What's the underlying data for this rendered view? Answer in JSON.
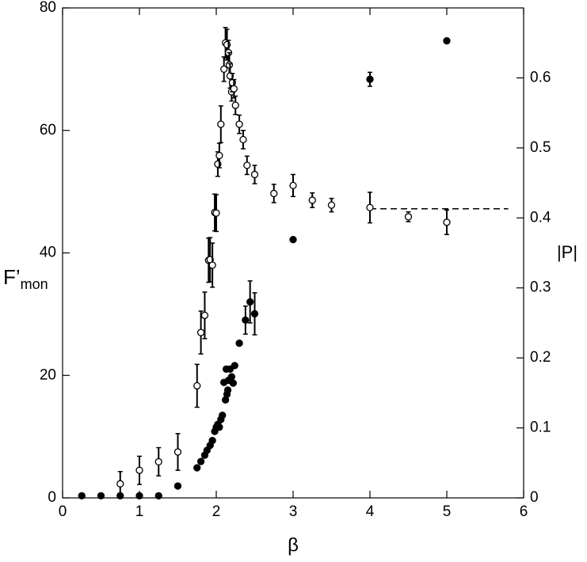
{
  "chart_data": {
    "type": "scatter",
    "x_label": "β",
    "y_label": "F’",
    "y_label_sub": "mon",
    "y2_label": "|P|",
    "xlim": [
      0,
      6
    ],
    "xticks": [
      0,
      1,
      2,
      3,
      4,
      5,
      6
    ],
    "ylim": [
      0,
      80
    ],
    "yticks": [
      0,
      20,
      40,
      60,
      80
    ],
    "y2lim": [
      0,
      0.7
    ],
    "y2ticks": [
      0,
      0.1,
      0.2,
      0.3,
      0.4,
      0.5,
      0.6
    ],
    "series": [
      {
        "marker": "open",
        "color": "#000000",
        "x": [
          0.75,
          1.0,
          1.25,
          1.5,
          1.75,
          1.8,
          1.85,
          1.9,
          1.92,
          1.95,
          1.98,
          2.0,
          2.02,
          2.04,
          2.06,
          2.1,
          2.12,
          2.14,
          2.16,
          2.17,
          2.18,
          2.2,
          2.21,
          2.23,
          2.25,
          2.3,
          2.35,
          2.4,
          2.5,
          2.75,
          3.0,
          3.25,
          3.5,
          4.0,
          4.5,
          5.0
        ],
        "values": [
          2.3,
          4.5,
          5.9,
          7.5,
          18.3,
          27.0,
          29.8,
          38.8,
          38.9,
          38.0,
          46.6,
          46.5,
          54.5,
          55.9,
          61.0,
          70.0,
          74.3,
          74.0,
          72.7,
          70.7,
          68.9,
          66.3,
          67.8,
          66.8,
          64.1,
          61.0,
          58.5,
          54.3,
          52.8,
          49.7,
          51.0,
          48.6,
          47.8,
          47.4,
          45.9,
          45.0
        ],
        "errors": [
          2.0,
          2.3,
          2.3,
          3.0,
          3.5,
          3.5,
          3.8,
          3.6,
          3.6,
          3.6,
          3.0,
          3.0,
          2.0,
          2.0,
          3.0,
          2.0,
          2.5,
          2.5,
          2.0,
          2.0,
          2.0,
          1.5,
          1.5,
          1.5,
          1.5,
          1.5,
          1.5,
          1.5,
          1.5,
          1.5,
          1.8,
          1.2,
          1.1,
          2.5,
          0.8,
          2.0
        ]
      },
      {
        "marker": "filled",
        "color": "#000000",
        "axis": "y2",
        "x": [
          0.25,
          0.5,
          0.75,
          1.0,
          1.25,
          1.5,
          1.75,
          1.8,
          1.85,
          1.88,
          1.92,
          1.95,
          1.98,
          2.0,
          2.02,
          2.04,
          2.06,
          2.08,
          2.1,
          2.12,
          2.13,
          2.14,
          2.15,
          2.16,
          2.18,
          2.2,
          2.22,
          2.24,
          2.3,
          2.38,
          2.44,
          2.5,
          3.0,
          4.0,
          5.0
        ],
        "values": [
          0.003,
          0.003,
          0.003,
          0.003,
          0.003,
          0.017,
          0.043,
          0.052,
          0.061,
          0.068,
          0.075,
          0.082,
          0.095,
          0.101,
          0.105,
          0.101,
          0.112,
          0.118,
          0.165,
          0.14,
          0.184,
          0.148,
          0.154,
          0.168,
          0.184,
          0.173,
          0.164,
          0.189,
          0.221,
          0.254,
          0.28,
          0.263,
          0.369,
          0.598,
          0.653
        ],
        "errors": [
          null,
          null,
          null,
          null,
          null,
          null,
          null,
          null,
          null,
          null,
          null,
          null,
          null,
          null,
          null,
          null,
          null,
          null,
          null,
          null,
          null,
          null,
          null,
          null,
          null,
          null,
          null,
          null,
          null,
          0.02,
          0.03,
          0.03,
          null,
          0.01,
          null
        ]
      }
    ],
    "ref_line": {
      "x": [
        4.0,
        5.8
      ],
      "y": 47.2
    }
  }
}
